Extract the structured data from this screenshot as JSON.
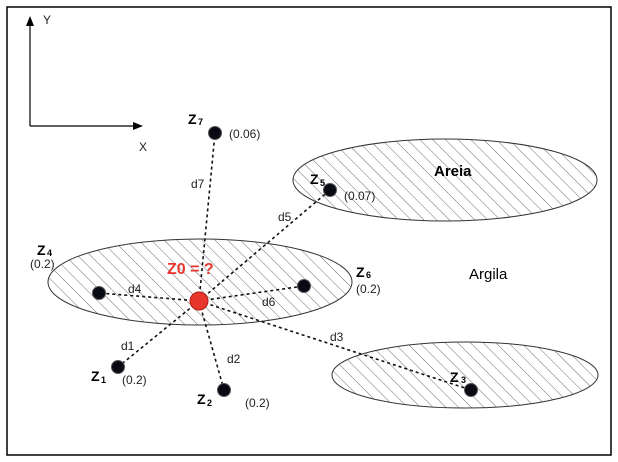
{
  "axes": {
    "y_label": "Y",
    "x_label": "X"
  },
  "target": {
    "label": "Z0 = ?",
    "color": "#e8362c"
  },
  "regions": [
    {
      "id": "areia",
      "label": "Areia",
      "bold": true
    },
    {
      "id": "argila",
      "label": "Argila",
      "bold": false
    }
  ],
  "points": [
    {
      "id": "z1",
      "main": "Z",
      "sub": "1",
      "value": "(0.2)",
      "distance": "d1"
    },
    {
      "id": "z2",
      "main": "Z",
      "sub": "2",
      "value": "(0.2)",
      "distance": "d2"
    },
    {
      "id": "z3",
      "main": "Z",
      "sub": "3",
      "value": "",
      "distance": "d3"
    },
    {
      "id": "z4",
      "main": "Z",
      "sub": "4",
      "value": "(0.2)",
      "distance": "d4"
    },
    {
      "id": "z5",
      "main": "Z",
      "sub": "5",
      "value": "(0.07)",
      "distance": "d5"
    },
    {
      "id": "z6",
      "main": "Z",
      "sub": "6",
      "value": "(0.2)",
      "distance": "d6"
    },
    {
      "id": "z7",
      "main": "Z",
      "sub": "7",
      "value": "(0.06)",
      "distance": "d7"
    }
  ],
  "colors": {
    "point": "#0a0a14",
    "hatch": "#666666",
    "border": "#000000"
  }
}
